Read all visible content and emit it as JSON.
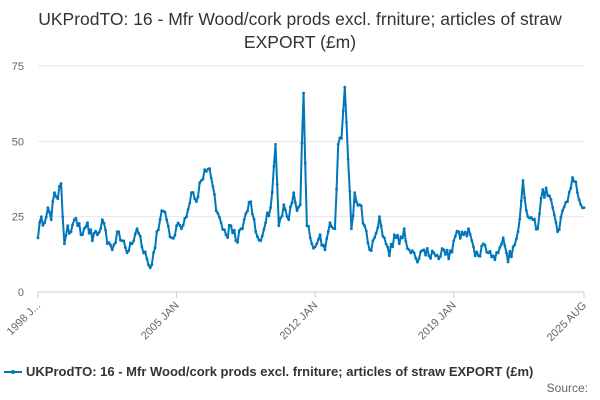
{
  "chart_data": {
    "type": "line",
    "title": "UKProdTO: 16 - Mfr Wood/cork prods excl. frniture; articles of straw EXPORT (£m)",
    "xlabel": "",
    "ylabel": "",
    "x_ticks": [
      "1998 J...",
      "2005 JAN",
      "2012 JAN",
      "2019 JAN",
      "2025 AUG"
    ],
    "x_tick_dates": [
      "1998-01",
      "2005-01",
      "2012-01",
      "2019-01",
      "2025-08"
    ],
    "y_ticks": [
      0,
      25,
      50,
      75
    ],
    "ylim": [
      0,
      75
    ],
    "xlim": [
      "1998-01",
      "2025-08"
    ],
    "grid": "horizontal",
    "legend_position": "bottom",
    "series": [
      {
        "name": "UKProdTO: 16 - Mfr Wood/cork prods excl. frniture; articles of straw EXPORT (£m)",
        "color": "#0077bb",
        "keypoints": [
          [
            "1998-01",
            18
          ],
          [
            "1998-03",
            25
          ],
          [
            "1998-05",
            23
          ],
          [
            "1998-07",
            28
          ],
          [
            "1998-09",
            24
          ],
          [
            "1998-11",
            33
          ],
          [
            "1999-01",
            31
          ],
          [
            "1999-03",
            36
          ],
          [
            "1999-05",
            16
          ],
          [
            "1999-07",
            22
          ],
          [
            "1999-09",
            20
          ],
          [
            "1999-11",
            24
          ],
          [
            "2000-01",
            22
          ],
          [
            "2000-04",
            19
          ],
          [
            "2000-07",
            23
          ],
          [
            "2000-10",
            17
          ],
          [
            "2001-01",
            19
          ],
          [
            "2001-04",
            24
          ],
          [
            "2001-07",
            16
          ],
          [
            "2001-10",
            14
          ],
          [
            "2002-01",
            20
          ],
          [
            "2002-04",
            17
          ],
          [
            "2002-07",
            13
          ],
          [
            "2002-10",
            16
          ],
          [
            "2003-01",
            21
          ],
          [
            "2003-04",
            15
          ],
          [
            "2003-07",
            11
          ],
          [
            "2003-09",
            8
          ],
          [
            "2003-11",
            13
          ],
          [
            "2004-01",
            20
          ],
          [
            "2004-04",
            27
          ],
          [
            "2004-07",
            24
          ],
          [
            "2004-10",
            18
          ],
          [
            "2005-01",
            22
          ],
          [
            "2005-04",
            21
          ],
          [
            "2005-07",
            25
          ],
          [
            "2005-10",
            33
          ],
          [
            "2006-01",
            30
          ],
          [
            "2006-04",
            37
          ],
          [
            "2006-07",
            40
          ],
          [
            "2006-09",
            41
          ],
          [
            "2006-11",
            35
          ],
          [
            "2007-01",
            27
          ],
          [
            "2007-04",
            23
          ],
          [
            "2007-07",
            19
          ],
          [
            "2007-10",
            22
          ],
          [
            "2008-01",
            17
          ],
          [
            "2008-04",
            21
          ],
          [
            "2008-07",
            26
          ],
          [
            "2008-10",
            30
          ],
          [
            "2009-01",
            20
          ],
          [
            "2009-04",
            17
          ],
          [
            "2009-07",
            23
          ],
          [
            "2009-10",
            28
          ],
          [
            "2010-01",
            49
          ],
          [
            "2010-03",
            22
          ],
          [
            "2010-06",
            29
          ],
          [
            "2010-09",
            24
          ],
          [
            "2010-12",
            33
          ],
          [
            "2011-02",
            27
          ],
          [
            "2011-04",
            29
          ],
          [
            "2011-06",
            66
          ],
          [
            "2011-08",
            22
          ],
          [
            "2011-10",
            18
          ],
          [
            "2012-01",
            15
          ],
          [
            "2012-04",
            19
          ],
          [
            "2012-07",
            14
          ],
          [
            "2012-10",
            23
          ],
          [
            "2013-01",
            21
          ],
          [
            "2013-03",
            49
          ],
          [
            "2013-05",
            51
          ],
          [
            "2013-07",
            68
          ],
          [
            "2013-09",
            44
          ],
          [
            "2013-11",
            21
          ],
          [
            "2014-01",
            33
          ],
          [
            "2014-04",
            29
          ],
          [
            "2014-07",
            22
          ],
          [
            "2014-10",
            14
          ],
          [
            "2015-01",
            18
          ],
          [
            "2015-04",
            25
          ],
          [
            "2015-07",
            18
          ],
          [
            "2015-10",
            12
          ],
          [
            "2016-01",
            19
          ],
          [
            "2016-04",
            16
          ],
          [
            "2016-07",
            21
          ],
          [
            "2016-10",
            14
          ],
          [
            "2017-01",
            13
          ],
          [
            "2017-04",
            11
          ],
          [
            "2017-07",
            14
          ],
          [
            "2017-10",
            12
          ],
          [
            "2018-01",
            13
          ],
          [
            "2018-04",
            11
          ],
          [
            "2018-07",
            14
          ],
          [
            "2018-10",
            11
          ],
          [
            "2019-01",
            17
          ],
          [
            "2019-04",
            20
          ],
          [
            "2019-07",
            19
          ],
          [
            "2019-10",
            21
          ],
          [
            "2020-01",
            15
          ],
          [
            "2020-04",
            12
          ],
          [
            "2020-07",
            16
          ],
          [
            "2020-10",
            13
          ],
          [
            "2021-01",
            12
          ],
          [
            "2021-04",
            13
          ],
          [
            "2021-07",
            18
          ],
          [
            "2021-10",
            10
          ],
          [
            "2022-01",
            15
          ],
          [
            "2022-04",
            20
          ],
          [
            "2022-07",
            37
          ],
          [
            "2022-10",
            25
          ],
          [
            "2023-01",
            24
          ],
          [
            "2023-04",
            21
          ],
          [
            "2023-07",
            34
          ],
          [
            "2023-10",
            32
          ],
          [
            "2024-01",
            28
          ],
          [
            "2024-04",
            20
          ],
          [
            "2024-07",
            27
          ],
          [
            "2024-10",
            30
          ],
          [
            "2025-01",
            38
          ],
          [
            "2025-04",
            33
          ],
          [
            "2025-06",
            29
          ],
          [
            "2025-08",
            28
          ]
        ]
      }
    ]
  },
  "legend_label": "UKProdTO: 16 - Mfr Wood/cork prods excl. frniture; articles of straw EXPORT (£m)",
  "source_label": "Source:"
}
